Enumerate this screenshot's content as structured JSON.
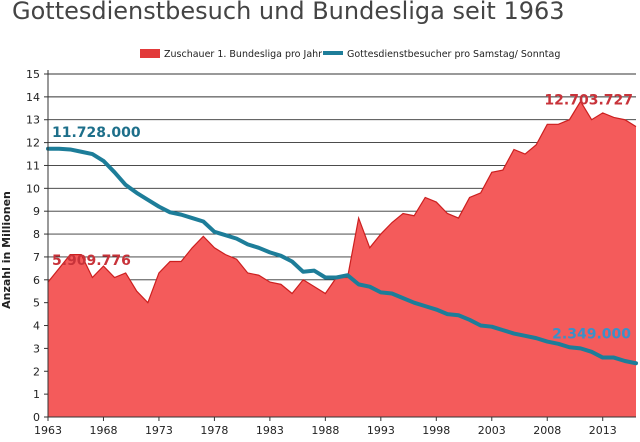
{
  "chart_data": {
    "type": "area",
    "title": "Gottesdienstbesuch und Bundesliga seit 1963",
    "xlabel": "",
    "ylabel": "Anzahl in Millionen",
    "ylim": [
      0,
      15
    ],
    "xlim": [
      1963,
      2016
    ],
    "grid": true,
    "legend_position": "top-center",
    "y_ticks": [
      0,
      1,
      2,
      3,
      4,
      5,
      6,
      7,
      8,
      9,
      10,
      11,
      12,
      13,
      14,
      15
    ],
    "x_ticks": [
      1963,
      1968,
      1973,
      1978,
      1983,
      1988,
      1993,
      1998,
      2003,
      2008,
      2013
    ],
    "colors": {
      "bundesliga_fill": "#f45b5b",
      "bundesliga_line": "#cc1f1f",
      "gottesdienst_line": "#1d7d99",
      "annotation_red": "#c8333a",
      "annotation_teal": "#1d6f8a",
      "annotation_blue": "#3b90c8",
      "legend_red": "#e23a3a"
    },
    "series": [
      {
        "name": "Zuschauer 1. Bundesliga pro Jahr",
        "style": "area",
        "x": [
          1963,
          1964,
          1965,
          1966,
          1967,
          1968,
          1969,
          1970,
          1971,
          1972,
          1973,
          1974,
          1975,
          1976,
          1977,
          1978,
          1979,
          1980,
          1981,
          1982,
          1983,
          1984,
          1985,
          1986,
          1987,
          1988,
          1989,
          1990,
          1991,
          1992,
          1993,
          1994,
          1995,
          1996,
          1997,
          1998,
          1999,
          2000,
          2001,
          2002,
          2003,
          2004,
          2005,
          2006,
          2007,
          2008,
          2009,
          2010,
          2011,
          2012,
          2013,
          2014,
          2015,
          2016
        ],
        "values": [
          5.9,
          6.5,
          7.1,
          7.1,
          6.1,
          6.6,
          6.1,
          6.3,
          5.5,
          5.0,
          6.3,
          6.8,
          6.8,
          7.4,
          7.9,
          7.4,
          7.1,
          6.9,
          6.3,
          6.2,
          5.9,
          5.8,
          5.4,
          6.0,
          5.7,
          5.4,
          6.1,
          6.1,
          8.7,
          7.4,
          8.0,
          8.5,
          8.9,
          8.8,
          9.6,
          9.4,
          8.9,
          8.7,
          9.6,
          9.8,
          10.7,
          10.8,
          11.7,
          11.5,
          11.9,
          12.8,
          12.8,
          13.0,
          13.8,
          13.0,
          13.3,
          13.1,
          13.0,
          12.7
        ]
      },
      {
        "name": "Gottesdienstbesucher pro Samstag/ Sonntag",
        "style": "line",
        "x": [
          1963,
          1964,
          1965,
          1966,
          1967,
          1968,
          1969,
          1970,
          1971,
          1972,
          1973,
          1974,
          1975,
          1976,
          1977,
          1978,
          1979,
          1980,
          1981,
          1982,
          1983,
          1984,
          1985,
          1986,
          1987,
          1988,
          1989,
          1990,
          1991,
          1992,
          1993,
          1994,
          1995,
          1996,
          1997,
          1998,
          1999,
          2000,
          2001,
          2002,
          2003,
          2004,
          2005,
          2006,
          2007,
          2008,
          2009,
          2010,
          2011,
          2012,
          2013,
          2014,
          2015,
          2016
        ],
        "values": [
          11.73,
          11.73,
          11.7,
          11.6,
          11.5,
          11.2,
          10.7,
          10.15,
          9.8,
          9.5,
          9.2,
          8.95,
          8.85,
          8.7,
          8.55,
          8.1,
          7.95,
          7.8,
          7.55,
          7.4,
          7.2,
          7.05,
          6.8,
          6.35,
          6.4,
          6.1,
          6.1,
          6.2,
          5.8,
          5.7,
          5.45,
          5.4,
          5.2,
          5.0,
          4.85,
          4.7,
          4.5,
          4.45,
          4.25,
          4.0,
          3.95,
          3.8,
          3.65,
          3.55,
          3.45,
          3.3,
          3.2,
          3.05,
          3.0,
          2.85,
          2.6,
          2.6,
          2.45,
          2.35
        ]
      }
    ],
    "annotations": [
      {
        "text": "11.728.000",
        "x": 1963,
        "y": 11.728,
        "color_key": "annotation_teal"
      },
      {
        "text": "5.909.776",
        "x": 1963,
        "y": 5.91,
        "color_key": "annotation_red"
      },
      {
        "text": "12.703.727",
        "x": 2016,
        "y": 12.704,
        "color_key": "annotation_red"
      },
      {
        "text": "2.349.000",
        "x": 2016,
        "y": 2.349,
        "color_key": "annotation_blue"
      }
    ]
  }
}
